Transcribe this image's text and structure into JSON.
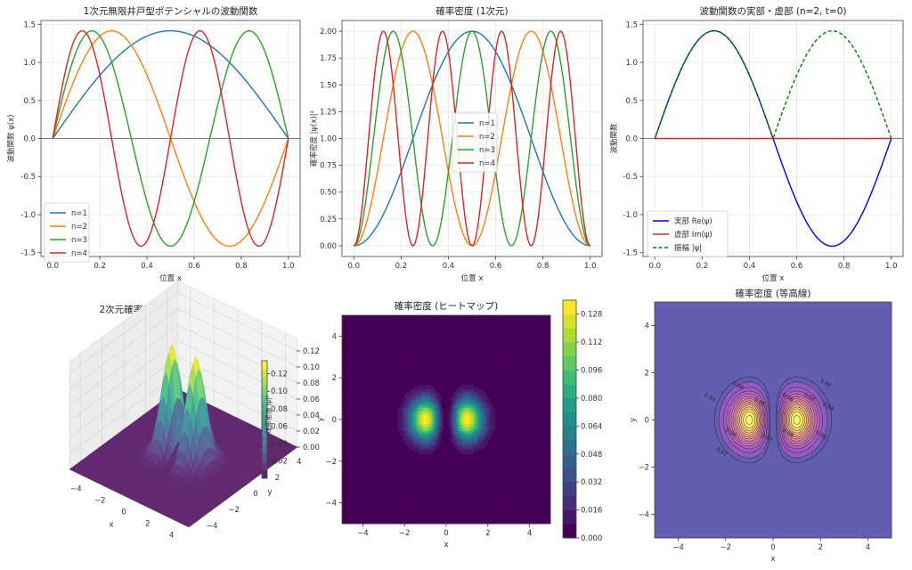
{
  "chart_data": [
    {
      "id": "wavefunctions",
      "type": "line",
      "title": "1次元無限井戸型ポテンシャルの波動関数",
      "xlabel": "位置 x",
      "ylabel": "波動関数 ψ(x)",
      "xlim": [
        -0.05,
        1.05
      ],
      "ylim": [
        -1.55,
        1.55
      ],
      "xticks": [
        "0.0",
        "0.2",
        "0.4",
        "0.6",
        "0.8",
        "1.0"
      ],
      "yticks": [
        "-1.5",
        "-1.0",
        "-0.5",
        "0.0",
        "0.5",
        "1.0",
        "1.5"
      ],
      "function": "sqrt(2)*sin(n*pi*x)",
      "x_range": [
        0,
        1
      ],
      "series": [
        {
          "name": "n=1",
          "n": 1,
          "color": "#1f77b4"
        },
        {
          "name": "n=2",
          "n": 2,
          "color": "#ff7f0e"
        },
        {
          "name": "n=3",
          "n": 3,
          "color": "#2ca02c"
        },
        {
          "name": "n=4",
          "n": 4,
          "color": "#d62728"
        }
      ],
      "legend": "lower-left",
      "grid": true,
      "hline": 0
    },
    {
      "id": "density1d",
      "type": "line",
      "title": "確率密度 (1次元)",
      "xlabel": "位置 x",
      "ylabel": "確率密度 |ψ(x)|²",
      "xlim": [
        -0.05,
        1.05
      ],
      "ylim": [
        -0.1,
        2.1
      ],
      "xticks": [
        "0.0",
        "0.2",
        "0.4",
        "0.6",
        "0.8",
        "1.0"
      ],
      "yticks": [
        "0.00",
        "0.25",
        "0.50",
        "0.75",
        "1.00",
        "1.25",
        "1.50",
        "1.75",
        "2.00"
      ],
      "function": "2*sin(n*pi*x)^2",
      "x_range": [
        0,
        1
      ],
      "series": [
        {
          "name": "n=1",
          "n": 1,
          "color": "#1f77b4"
        },
        {
          "name": "n=2",
          "n": 2,
          "color": "#ff7f0e"
        },
        {
          "name": "n=3",
          "n": 3,
          "color": "#2ca02c"
        },
        {
          "name": "n=4",
          "n": 4,
          "color": "#d62728"
        }
      ],
      "legend": "center",
      "grid": true
    },
    {
      "id": "realimag",
      "type": "line",
      "title": "波動関数の実部・虚部 (n=2, t=0)",
      "xlabel": "位置 x",
      "ylabel": "波動関数",
      "xlim": [
        -0.05,
        1.05
      ],
      "ylim": [
        -1.55,
        1.55
      ],
      "xticks": [
        "0.0",
        "0.2",
        "0.4",
        "0.6",
        "0.8",
        "1.0"
      ],
      "yticks": [
        "-1.5",
        "-1.0",
        "-0.5",
        "0.0",
        "0.5",
        "1.0",
        "1.5"
      ],
      "n": 2,
      "series": [
        {
          "name": "実部 Re(ψ)",
          "kind": "real",
          "color": "#0000ff",
          "dash": false
        },
        {
          "name": "虚部 Im(ψ)",
          "kind": "imag",
          "color": "#d62728",
          "dash": false
        },
        {
          "name": "振幅 |ψ|",
          "kind": "abs",
          "color": "#008000",
          "dash": true
        }
      ],
      "legend": "lower-left",
      "grid": true,
      "hline": 0
    },
    {
      "id": "surface3d",
      "type": "surface",
      "title": "2次元確率密度 (3D表示)",
      "xlabel": "x",
      "ylabel": "y",
      "zlabel": "確率密度 |ψ|²",
      "xticks": [
        "-4",
        "-2",
        "0",
        "2",
        "4"
      ],
      "yticks": [
        "-4",
        "-2",
        "0",
        "2",
        "4"
      ],
      "zticks": [
        "0.00",
        "0.02",
        "0.04",
        "0.06",
        "0.08",
        "0.10",
        "0.12"
      ],
      "colorbar_ticks": [
        "0.02",
        "0.04",
        "0.06",
        "0.08",
        "0.10",
        "0.12"
      ],
      "colormap": "viridis",
      "peak_value": 0.135,
      "peaks": [
        [
          -1,
          0
        ],
        [
          1,
          0
        ]
      ]
    },
    {
      "id": "heatmap",
      "type": "heatmap",
      "title": "確率密度 (ヒートマップ)",
      "xlabel": "x",
      "ylabel": "y",
      "xlim": [
        -5,
        5
      ],
      "ylim": [
        -5,
        5
      ],
      "xticks": [
        "-4",
        "-2",
        "0",
        "2",
        "4"
      ],
      "yticks": [
        "-4",
        "-2",
        "0",
        "2",
        "4"
      ],
      "colorbar_ticks": [
        "0.000",
        "0.016",
        "0.032",
        "0.048",
        "0.064",
        "0.080",
        "0.096",
        "0.112",
        "0.128"
      ],
      "colorbar_range": [
        0,
        0.136
      ],
      "levels": 17,
      "colormap": "viridis",
      "function": "(1/pi)*x^2*exp(-(x^2+y^2)) normalized, peaks at x=±1, y=0",
      "peak_value": 0.135
    },
    {
      "id": "contour",
      "type": "heatmap",
      "title": "確率密度 (等高線)",
      "xlabel": "x",
      "ylabel": "y",
      "xlim": [
        -5,
        5
      ],
      "ylim": [
        -5,
        5
      ],
      "xticks": [
        "-4",
        "-2",
        "0",
        "2",
        "4"
      ],
      "yticks": [
        "-4",
        "-2",
        "0",
        "2",
        "4"
      ],
      "colormap": "plasma",
      "contour_labels": [
        "0.02",
        "0.03",
        "0.04",
        "0.05",
        "0.06",
        "0.07",
        "0.08",
        "0.09",
        "0.10",
        "0.11"
      ],
      "peak_value": 0.135
    }
  ]
}
